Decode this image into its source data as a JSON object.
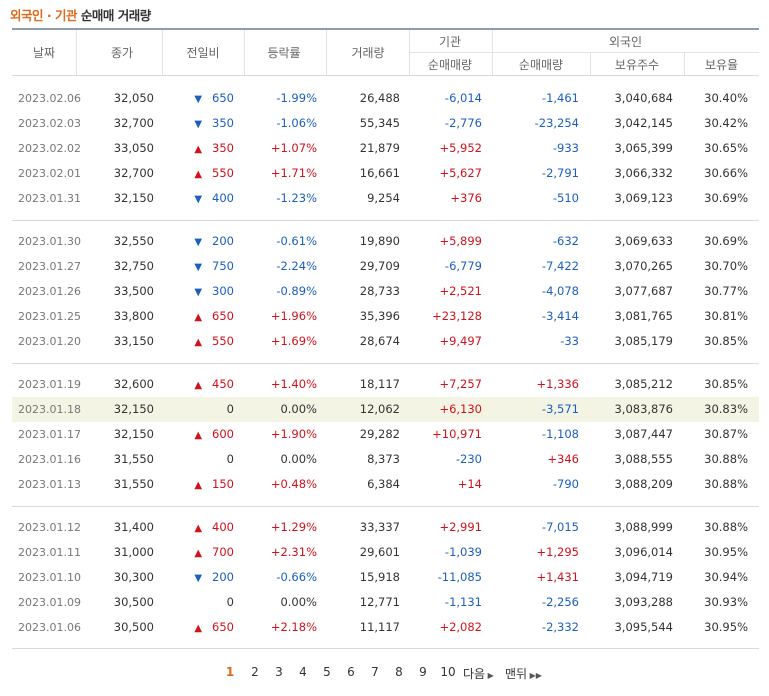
{
  "title": {
    "part1": "외국인",
    "sep": "·",
    "part2": "기관",
    "part3": "순매매 거래량"
  },
  "columns": {
    "date": "날짜",
    "close": "종가",
    "diff": "전일비",
    "rate": "등락률",
    "volume": "거래량",
    "inst_group": "기관",
    "inst_net": "순매매량",
    "foreign_group": "외국인",
    "foreign_net": "순매매량",
    "holdings": "보유주수",
    "ratio": "보유율"
  },
  "colors": {
    "up": "#d1121c",
    "down": "#1a5fbf",
    "accent": "#e0691a",
    "highlight": "#f4f4e4"
  },
  "rows": [
    {
      "date": "2023.02.06",
      "close": "32,050",
      "dir": "down",
      "diff": "650",
      "rate": "-1.99%",
      "volume": "26,488",
      "inst": "-6,014",
      "foreign": "-1,461",
      "holdings": "3,040,684",
      "ratio": "30.40%"
    },
    {
      "date": "2023.02.03",
      "close": "32,700",
      "dir": "down",
      "diff": "350",
      "rate": "-1.06%",
      "volume": "55,345",
      "inst": "-2,776",
      "foreign": "-23,254",
      "holdings": "3,042,145",
      "ratio": "30.42%"
    },
    {
      "date": "2023.02.02",
      "close": "33,050",
      "dir": "up",
      "diff": "350",
      "rate": "+1.07%",
      "volume": "21,879",
      "inst": "+5,952",
      "foreign": "-933",
      "holdings": "3,065,399",
      "ratio": "30.65%"
    },
    {
      "date": "2023.02.01",
      "close": "32,700",
      "dir": "up",
      "diff": "550",
      "rate": "+1.71%",
      "volume": "16,661",
      "inst": "+5,627",
      "foreign": "-2,791",
      "holdings": "3,066,332",
      "ratio": "30.66%"
    },
    {
      "date": "2023.01.31",
      "close": "32,150",
      "dir": "down",
      "diff": "400",
      "rate": "-1.23%",
      "volume": "9,254",
      "inst": "+376",
      "foreign": "-510",
      "holdings": "3,069,123",
      "ratio": "30.69%"
    },
    {
      "date": "2023.01.30",
      "close": "32,550",
      "dir": "down",
      "diff": "200",
      "rate": "-0.61%",
      "volume": "19,890",
      "inst": "+5,899",
      "foreign": "-632",
      "holdings": "3,069,633",
      "ratio": "30.69%"
    },
    {
      "date": "2023.01.27",
      "close": "32,750",
      "dir": "down",
      "diff": "750",
      "rate": "-2.24%",
      "volume": "29,709",
      "inst": "-6,779",
      "foreign": "-7,422",
      "holdings": "3,070,265",
      "ratio": "30.70%"
    },
    {
      "date": "2023.01.26",
      "close": "33,500",
      "dir": "down",
      "diff": "300",
      "rate": "-0.89%",
      "volume": "28,733",
      "inst": "+2,521",
      "foreign": "-4,078",
      "holdings": "3,077,687",
      "ratio": "30.77%"
    },
    {
      "date": "2023.01.25",
      "close": "33,800",
      "dir": "up",
      "diff": "650",
      "rate": "+1.96%",
      "volume": "35,396",
      "inst": "+23,128",
      "foreign": "-3,414",
      "holdings": "3,081,765",
      "ratio": "30.81%"
    },
    {
      "date": "2023.01.20",
      "close": "33,150",
      "dir": "up",
      "diff": "550",
      "rate": "+1.69%",
      "volume": "28,674",
      "inst": "+9,497",
      "foreign": "-33",
      "holdings": "3,085,179",
      "ratio": "30.85%"
    },
    {
      "date": "2023.01.19",
      "close": "32,600",
      "dir": "up",
      "diff": "450",
      "rate": "+1.40%",
      "volume": "18,117",
      "inst": "+7,257",
      "foreign": "+1,336",
      "holdings": "3,085,212",
      "ratio": "30.85%"
    },
    {
      "date": "2023.01.18",
      "close": "32,150",
      "dir": "flat",
      "diff": "0",
      "rate": "0.00%",
      "volume": "12,062",
      "inst": "+6,130",
      "foreign": "-3,571",
      "holdings": "3,083,876",
      "ratio": "30.83%",
      "highlight": true
    },
    {
      "date": "2023.01.17",
      "close": "32,150",
      "dir": "up",
      "diff": "600",
      "rate": "+1.90%",
      "volume": "29,282",
      "inst": "+10,971",
      "foreign": "-1,108",
      "holdings": "3,087,447",
      "ratio": "30.87%"
    },
    {
      "date": "2023.01.16",
      "close": "31,550",
      "dir": "flat",
      "diff": "0",
      "rate": "0.00%",
      "volume": "8,373",
      "inst": "-230",
      "foreign": "+346",
      "holdings": "3,088,555",
      "ratio": "30.88%"
    },
    {
      "date": "2023.01.13",
      "close": "31,550",
      "dir": "up",
      "diff": "150",
      "rate": "+0.48%",
      "volume": "6,384",
      "inst": "+14",
      "foreign": "-790",
      "holdings": "3,088,209",
      "ratio": "30.88%"
    },
    {
      "date": "2023.01.12",
      "close": "31,400",
      "dir": "up",
      "diff": "400",
      "rate": "+1.29%",
      "volume": "33,337",
      "inst": "+2,991",
      "foreign": "-7,015",
      "holdings": "3,088,999",
      "ratio": "30.88%"
    },
    {
      "date": "2023.01.11",
      "close": "31,000",
      "dir": "up",
      "diff": "700",
      "rate": "+2.31%",
      "volume": "29,601",
      "inst": "-1,039",
      "foreign": "+1,295",
      "holdings": "3,096,014",
      "ratio": "30.95%"
    },
    {
      "date": "2023.01.10",
      "close": "30,300",
      "dir": "down",
      "diff": "200",
      "rate": "-0.66%",
      "volume": "15,918",
      "inst": "-11,085",
      "foreign": "+1,431",
      "holdings": "3,094,719",
      "ratio": "30.94%"
    },
    {
      "date": "2023.01.09",
      "close": "30,500",
      "dir": "flat",
      "diff": "0",
      "rate": "0.00%",
      "volume": "12,771",
      "inst": "-1,131",
      "foreign": "-2,256",
      "holdings": "3,093,288",
      "ratio": "30.93%"
    },
    {
      "date": "2023.01.06",
      "close": "30,500",
      "dir": "up",
      "diff": "650",
      "rate": "+2.18%",
      "volume": "11,117",
      "inst": "+2,082",
      "foreign": "-2,332",
      "holdings": "3,095,544",
      "ratio": "30.95%"
    }
  ],
  "pagination": {
    "pages": [
      "1",
      "2",
      "3",
      "4",
      "5",
      "6",
      "7",
      "8",
      "9",
      "10"
    ],
    "current": "1",
    "next_label": "다음",
    "last_label": "맨뒤"
  }
}
